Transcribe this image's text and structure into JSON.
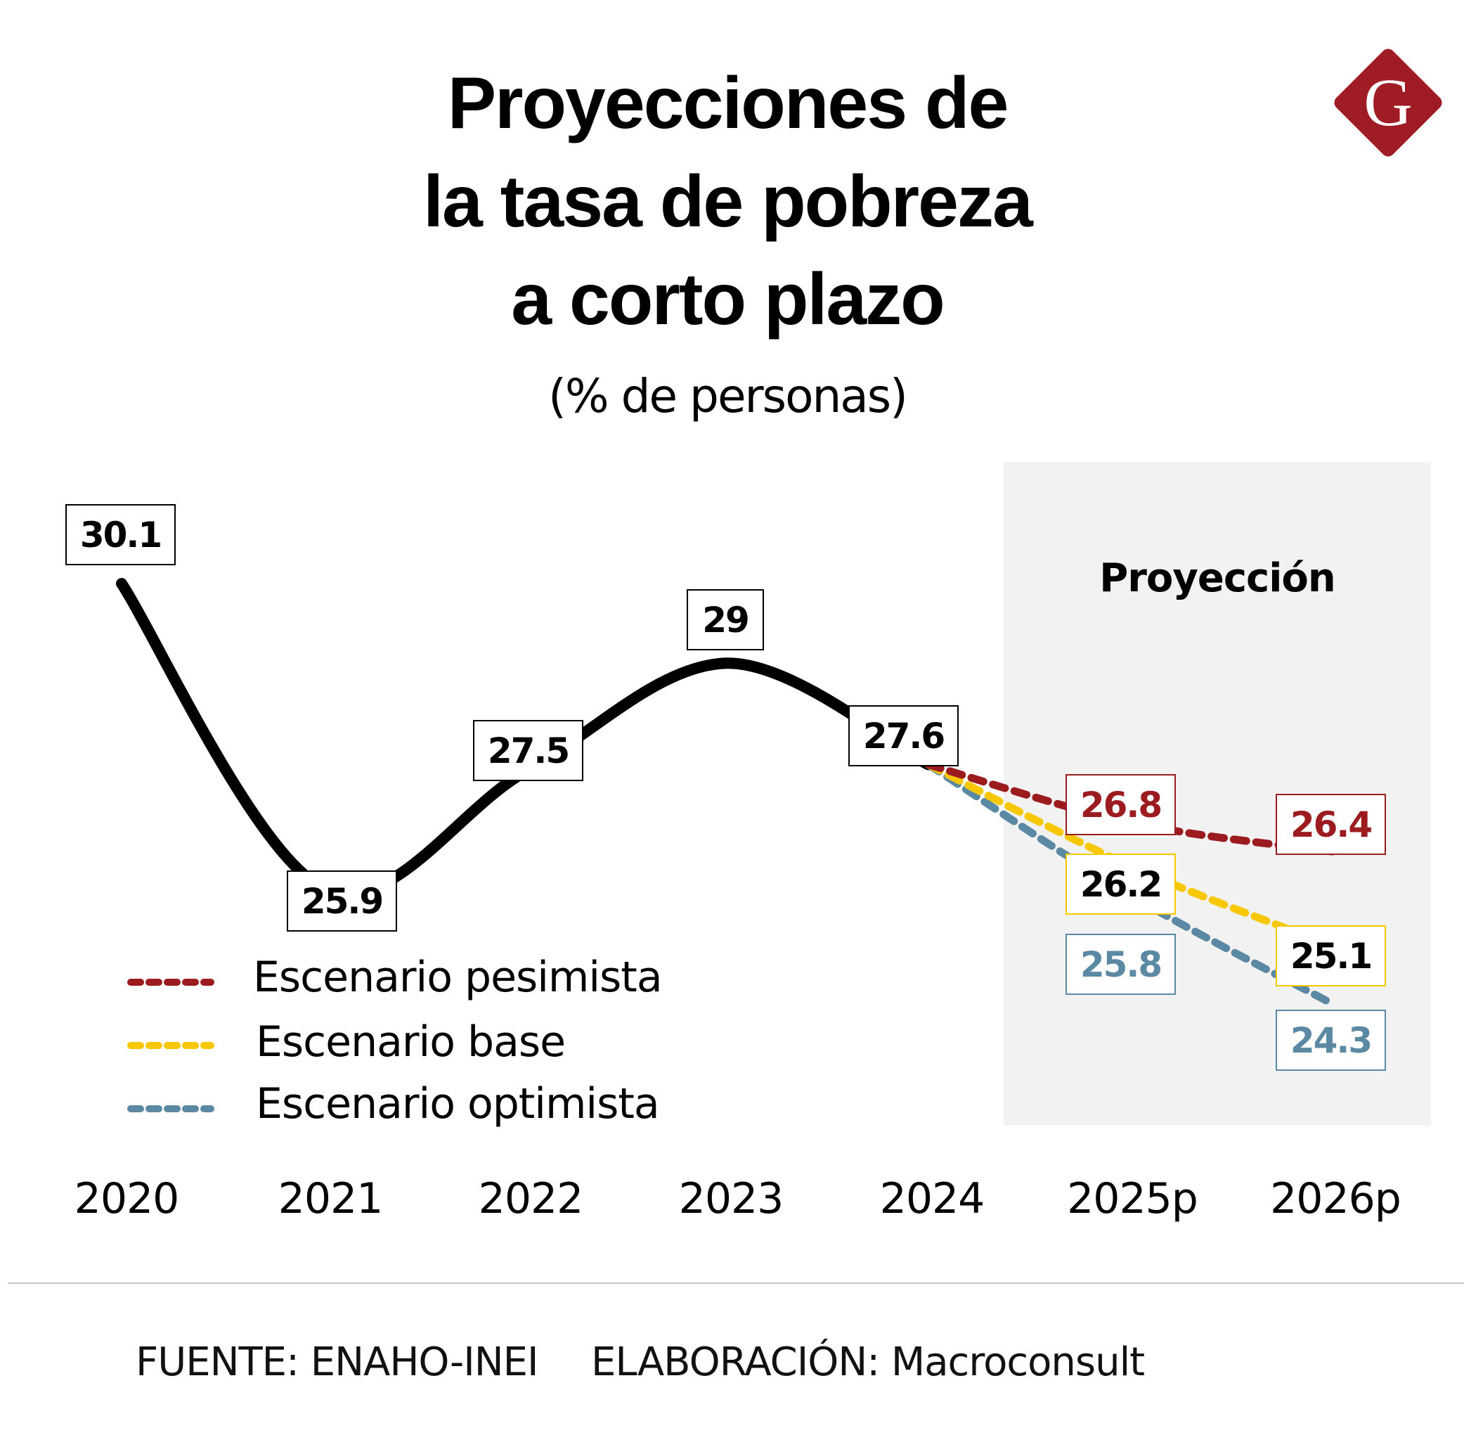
{
  "header": {
    "title_lines": [
      "Proyecciones de",
      "la tasa de pobreza",
      "a corto plazo"
    ],
    "subtitle": "(% de personas)",
    "logo_letter": "G"
  },
  "chart_data": {
    "type": "line",
    "title": "Proyecciones de la tasa de pobreza a corto plazo",
    "subtitle": "(% de personas)",
    "categories": [
      "2020",
      "2021",
      "2022",
      "2023",
      "2024",
      "2025p",
      "2026p"
    ],
    "projection_label": "Proyección",
    "projection_shaded_categories": [
      "2025p",
      "2026p"
    ],
    "historical": {
      "values": [
        30.1,
        25.9,
        27.5,
        29,
        27.6
      ],
      "color": "#000000",
      "labels": [
        "30.1",
        "25.9",
        "27.5",
        "29",
        "27.6"
      ]
    },
    "series": [
      {
        "name": "Escenario pesimista",
        "values": [
          null,
          null,
          null,
          null,
          27.6,
          26.8,
          26.4
        ],
        "labels": [
          "26.8",
          "26.4"
        ],
        "color": "#9b1b1f",
        "label_text_color": "#9b1b1f",
        "dashed": true
      },
      {
        "name": "Escenario base",
        "values": [
          null,
          null,
          null,
          null,
          27.6,
          26.2,
          25.1
        ],
        "labels": [
          "26.2",
          "25.1"
        ],
        "color": "#f7c800",
        "label_text_color": "#000000",
        "dashed": true
      },
      {
        "name": "Escenario optimista",
        "values": [
          null,
          null,
          null,
          null,
          27.6,
          25.8,
          24.3
        ],
        "labels": [
          "25.8",
          "24.3"
        ],
        "color": "#5b88a2",
        "label_text_color": "#5b88a2",
        "dashed": true
      }
    ],
    "legend_placement": "bottom-left",
    "grid": false,
    "y_axis_visible": false
  },
  "footer": {
    "source": "FUENTE: ENAHO-INEI",
    "credit": "ELABORACIÓN: Macroconsult"
  },
  "colors": {
    "brand": "#a01c25",
    "projection_bg": "#f2f2f2"
  }
}
